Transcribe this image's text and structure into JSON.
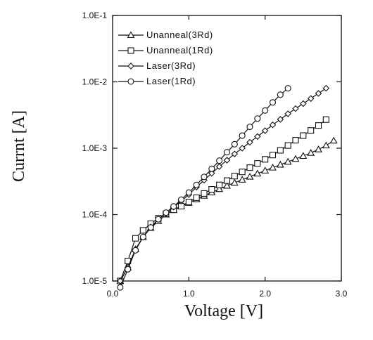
{
  "chart_data": {
    "type": "line",
    "title": "",
    "xlabel": "Voltage [V]",
    "ylabel": "Currnt [A]",
    "xlim": [
      0.0,
      3.0
    ],
    "ylim": [
      1e-05,
      0.1
    ],
    "yscale": "log",
    "grid": false,
    "legend_position": "top-left",
    "x_ticks": [
      "0.0",
      "1.0",
      "2.0",
      "3.0"
    ],
    "y_ticks": [
      "1.0E-5",
      "1.0E-4",
      "1.0E-3",
      "1.0E-2",
      "1.0E-1"
    ],
    "series": [
      {
        "name": "Unanneal(3Rd)",
        "marker": "triangle",
        "x": [
          0.1,
          0.2,
          0.3,
          0.4,
          0.5,
          0.6,
          0.7,
          0.8,
          0.9,
          1.0,
          1.1,
          1.2,
          1.3,
          1.4,
          1.5,
          1.6,
          1.7,
          1.8,
          1.9,
          2.0,
          2.1,
          2.2,
          2.3,
          2.4,
          2.5,
          2.6,
          2.7,
          2.8,
          2.9
        ],
        "y": [
          1e-05,
          1.6e-05,
          3e-05,
          4.6e-05,
          6.3e-05,
          8e-05,
          0.0001,
          0.000118,
          0.000133,
          0.00015,
          0.00017,
          0.000192,
          0.000216,
          0.000242,
          0.000272,
          0.000302,
          0.000335,
          0.000372,
          0.000415,
          0.00046,
          0.00051,
          0.000565,
          0.000625,
          0.00069,
          0.000765,
          0.00085,
          0.00096,
          0.0011,
          0.0013
        ]
      },
      {
        "name": "Unanneal(1Rd)",
        "marker": "square",
        "x": [
          0.1,
          0.2,
          0.3,
          0.4,
          0.5,
          0.6,
          0.7,
          0.8,
          0.9,
          1.0,
          1.1,
          1.2,
          1.3,
          1.4,
          1.5,
          1.6,
          1.7,
          1.8,
          1.9,
          2.0,
          2.1,
          2.2,
          2.3,
          2.4,
          2.5,
          2.6,
          2.7,
          2.8
        ],
        "y": [
          1e-05,
          2e-05,
          4.4e-05,
          5.8e-05,
          7.3e-05,
          8.8e-05,
          0.000103,
          0.000118,
          0.000134,
          0.000155,
          0.00018,
          0.000208,
          0.00024,
          0.00028,
          0.000325,
          0.00038,
          0.00044,
          0.00051,
          0.00059,
          0.00068,
          0.00079,
          0.00093,
          0.0011,
          0.00132,
          0.00155,
          0.00185,
          0.0022,
          0.0027
        ]
      },
      {
        "name": "Laser(3Rd)",
        "marker": "diamond",
        "x": [
          0.1,
          0.2,
          0.3,
          0.4,
          0.5,
          0.6,
          0.7,
          0.8,
          0.9,
          1.0,
          1.1,
          1.2,
          1.3,
          1.4,
          1.5,
          1.6,
          1.7,
          1.8,
          1.9,
          2.0,
          2.1,
          2.2,
          2.3,
          2.4,
          2.5,
          2.6,
          2.7,
          2.8
        ],
        "y": [
          1e-05,
          1.6e-05,
          3e-05,
          4.6e-05,
          6.5e-05,
          8.5e-05,
          0.000105,
          0.00013,
          0.00016,
          0.0002,
          0.00026,
          0.00033,
          0.00042,
          0.00053,
          0.00066,
          0.00082,
          0.001,
          0.00123,
          0.0015,
          0.00184,
          0.00225,
          0.00272,
          0.0033,
          0.00395,
          0.0047,
          0.0056,
          0.0067,
          0.008
        ]
      },
      {
        "name": "Laser(1Rd)",
        "marker": "circle",
        "x": [
          0.1,
          0.2,
          0.3,
          0.4,
          0.5,
          0.6,
          0.7,
          0.8,
          0.9,
          1.0,
          1.1,
          1.2,
          1.3,
          1.4,
          1.5,
          1.6,
          1.7,
          1.8,
          1.9,
          2.0,
          2.1,
          2.2,
          2.3
        ],
        "y": [
          8e-06,
          1.5e-05,
          2.9e-05,
          4.6e-05,
          6.4e-05,
          8.5e-05,
          0.000107,
          0.000133,
          0.000168,
          0.000215,
          0.00028,
          0.00037,
          0.00049,
          0.00065,
          0.00087,
          0.00115,
          0.00155,
          0.0021,
          0.0028,
          0.0037,
          0.0049,
          0.0064,
          0.008
        ]
      }
    ]
  }
}
